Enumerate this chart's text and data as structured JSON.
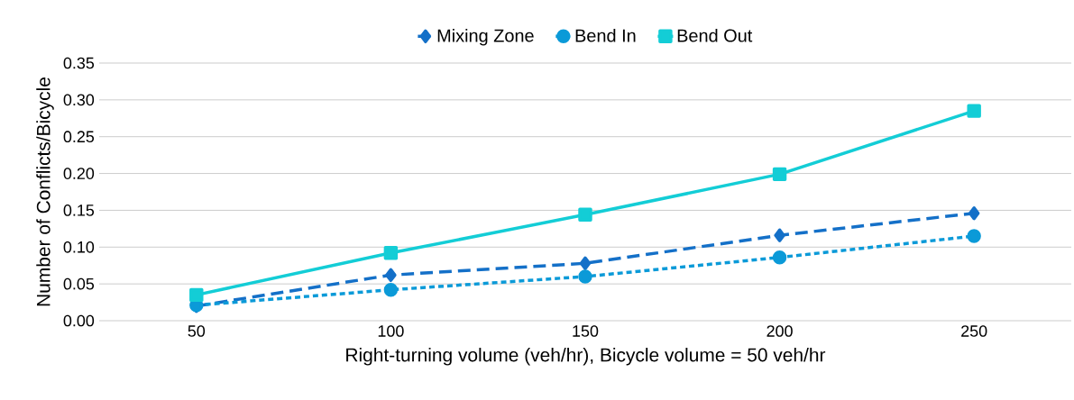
{
  "chart_data": {
    "type": "line",
    "xlabel": "Right-turning volume (veh/hr), Bicycle volume = 50 veh/hr",
    "ylabel": "Number of Conflicts/Bicycle",
    "categories": [
      "50",
      "100",
      "150",
      "200",
      "250"
    ],
    "series": [
      {
        "name": "Mixing Zone",
        "color": "#1470c8",
        "values": [
          0.02,
          0.062,
          0.078,
          0.116,
          0.146
        ],
        "marker": "diamond",
        "line_style": "dashed"
      },
      {
        "name": "Bend In",
        "color": "#0b9ad8",
        "values": [
          0.021,
          0.042,
          0.06,
          0.086,
          0.115
        ],
        "marker": "circle",
        "line_style": "dotted"
      },
      {
        "name": "Bend Out",
        "color": "#13cdd6",
        "values": [
          0.035,
          0.092,
          0.144,
          0.199,
          0.285
        ],
        "marker": "square",
        "line_style": "solid"
      }
    ],
    "ylim": [
      0,
      0.35
    ],
    "yticks": [
      {
        "value": 0,
        "label": "0.00"
      },
      0.05,
      {
        "value": 0.1,
        "label": "0.10"
      },
      0.15,
      {
        "value": 0.2,
        "label": "0.20"
      },
      0.25,
      {
        "value": 0.3,
        "label": "0.30"
      },
      0.35
    ],
    "grid": "y",
    "legend": "top"
  }
}
